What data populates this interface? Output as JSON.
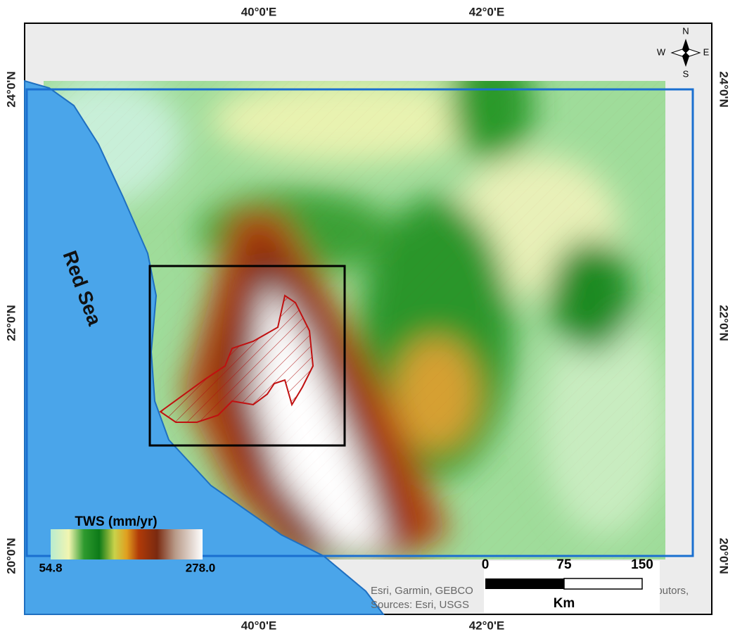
{
  "graticule": {
    "top": [
      "40°0'E",
      "42°0'E"
    ],
    "bottom": [
      "40°0'E",
      "42°0'E"
    ],
    "left": [
      "24°0'N",
      "22°0'N",
      "20°0'N"
    ],
    "right": [
      "24°0'N",
      "22°0'N",
      "20°0'N"
    ]
  },
  "labels": {
    "sea": "Red Sea"
  },
  "legend": {
    "title": "TWS (mm/yr)",
    "min": "54.8",
    "max": "278.0"
  },
  "scale_bar": {
    "ticks": [
      "0",
      "75",
      "150"
    ],
    "unit": "Km"
  },
  "attribution": [
    "Esri, Garmin, GEBCO",
    "ributors,",
    "Sources: Esri, USGS"
  ],
  "compass": {
    "n": "N",
    "e": "E",
    "s": "S",
    "w": "W"
  }
}
